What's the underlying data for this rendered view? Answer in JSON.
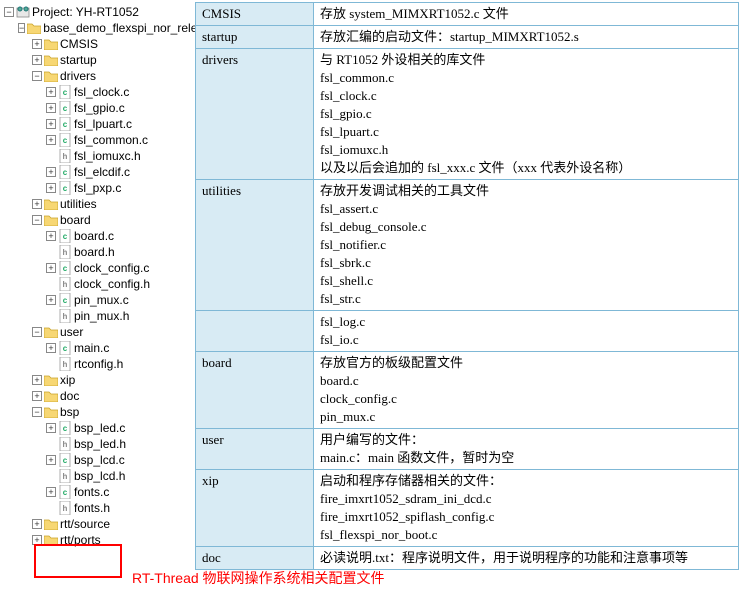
{
  "project": {
    "label": "Project: YH-RT1052"
  },
  "tree": [
    {
      "depth": 0,
      "toggle": "-",
      "icon": "project",
      "label": "Project: YH-RT1052",
      "interact": true
    },
    {
      "depth": 1,
      "toggle": "-",
      "icon": "folder",
      "label": "base_demo_flexspi_nor_release",
      "interact": true
    },
    {
      "depth": 2,
      "toggle": "+",
      "icon": "folder",
      "label": "CMSIS",
      "interact": true
    },
    {
      "depth": 2,
      "toggle": "+",
      "icon": "folder",
      "label": "startup",
      "interact": true
    },
    {
      "depth": 2,
      "toggle": "-",
      "icon": "folder",
      "label": "drivers",
      "interact": true
    },
    {
      "depth": 3,
      "toggle": "+",
      "icon": "file-c",
      "label": "fsl_clock.c",
      "interact": true
    },
    {
      "depth": 3,
      "toggle": "+",
      "icon": "file-c",
      "label": "fsl_gpio.c",
      "interact": true
    },
    {
      "depth": 3,
      "toggle": "+",
      "icon": "file-c",
      "label": "fsl_lpuart.c",
      "interact": true
    },
    {
      "depth": 3,
      "toggle": "+",
      "icon": "file-c",
      "label": "fsl_common.c",
      "interact": true
    },
    {
      "depth": 3,
      "toggle": "",
      "icon": "file-h",
      "label": "fsl_iomuxc.h",
      "interact": true
    },
    {
      "depth": 3,
      "toggle": "+",
      "icon": "file-c",
      "label": "fsl_elcdif.c",
      "interact": true
    },
    {
      "depth": 3,
      "toggle": "+",
      "icon": "file-c",
      "label": "fsl_pxp.c",
      "interact": true
    },
    {
      "depth": 2,
      "toggle": "+",
      "icon": "folder",
      "label": "utilities",
      "interact": true
    },
    {
      "depth": 2,
      "toggle": "-",
      "icon": "folder",
      "label": "board",
      "interact": true
    },
    {
      "depth": 3,
      "toggle": "+",
      "icon": "file-c",
      "label": "board.c",
      "interact": true
    },
    {
      "depth": 3,
      "toggle": "",
      "icon": "file-h",
      "label": "board.h",
      "interact": true
    },
    {
      "depth": 3,
      "toggle": "+",
      "icon": "file-c",
      "label": "clock_config.c",
      "interact": true
    },
    {
      "depth": 3,
      "toggle": "",
      "icon": "file-h",
      "label": "clock_config.h",
      "interact": true
    },
    {
      "depth": 3,
      "toggle": "+",
      "icon": "file-c",
      "label": "pin_mux.c",
      "interact": true
    },
    {
      "depth": 3,
      "toggle": "",
      "icon": "file-h",
      "label": "pin_mux.h",
      "interact": true
    },
    {
      "depth": 2,
      "toggle": "-",
      "icon": "folder",
      "label": "user",
      "interact": true
    },
    {
      "depth": 3,
      "toggle": "+",
      "icon": "file-c",
      "label": "main.c",
      "interact": true
    },
    {
      "depth": 3,
      "toggle": "",
      "icon": "file-h",
      "label": "rtconfig.h",
      "interact": true
    },
    {
      "depth": 2,
      "toggle": "+",
      "icon": "folder",
      "label": "xip",
      "interact": true
    },
    {
      "depth": 2,
      "toggle": "+",
      "icon": "folder",
      "label": "doc",
      "interact": true
    },
    {
      "depth": 2,
      "toggle": "-",
      "icon": "folder",
      "label": "bsp",
      "interact": true
    },
    {
      "depth": 3,
      "toggle": "+",
      "icon": "file-c",
      "label": "bsp_led.c",
      "interact": true
    },
    {
      "depth": 3,
      "toggle": "",
      "icon": "file-h",
      "label": "bsp_led.h",
      "interact": true
    },
    {
      "depth": 3,
      "toggle": "+",
      "icon": "file-c",
      "label": "bsp_lcd.c",
      "interact": true
    },
    {
      "depth": 3,
      "toggle": "",
      "icon": "file-h",
      "label": "bsp_lcd.h",
      "interact": true
    },
    {
      "depth": 3,
      "toggle": "+",
      "icon": "file-c",
      "label": "fonts.c",
      "interact": true
    },
    {
      "depth": 3,
      "toggle": "",
      "icon": "file-h",
      "label": "fonts.h",
      "interact": true
    },
    {
      "depth": 2,
      "toggle": "+",
      "icon": "folder",
      "label": "rtt/source",
      "interact": true
    },
    {
      "depth": 2,
      "toggle": "+",
      "icon": "folder",
      "label": "rtt/ports",
      "interact": true
    }
  ],
  "caption": "RT-Thread 物联网操作系统相关配置文件",
  "table": [
    {
      "k": "CMSIS",
      "v": "存放 system_MIMXRT1052.c 文件"
    },
    {
      "k": "startup",
      "v": "存放汇编的启动文件：startup_MIMXRT1052.s"
    },
    {
      "k": "drivers",
      "v": "与 RT1052 外设相关的库文件\nfsl_common.c\nfsl_clock.c\nfsl_gpio.c\nfsl_lpuart.c\nfsl_iomuxc.h\n以及以后会追加的 fsl_xxx.c 文件（xxx 代表外设名称）"
    },
    {
      "k": "utilities",
      "v": "存放开发调试相关的工具文件\nfsl_assert.c\nfsl_debug_console.c\nfsl_notifier.c\nfsl_sbrk.c\nfsl_shell.c\nfsl_str.c"
    },
    {
      "k": "",
      "v": "fsl_log.c\nfsl_io.c"
    },
    {
      "k": "board",
      "v": "存放官方的板级配置文件\nboard.c\nclock_config.c\npin_mux.c"
    },
    {
      "k": "user",
      "v": "用户编写的文件：\nmain.c：main 函数文件，暂时为空"
    },
    {
      "k": "xip",
      "v": "启动和程序存储器相关的文件：\nfire_imxrt1052_sdram_ini_dcd.c\nfire_imxrt1052_spiflash_config.c\nfsl_flexspi_nor_boot.c"
    },
    {
      "k": "doc",
      "v": "必读说明.txt：程序说明文件，用于说明程序的功能和注意事项等"
    }
  ]
}
